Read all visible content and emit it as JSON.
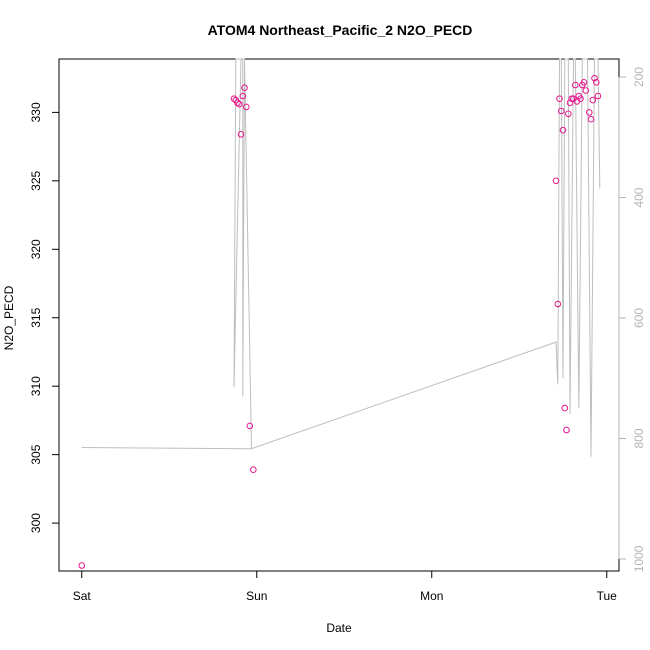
{
  "chart_data": {
    "type": "scatter",
    "title": "ATOM4 Northeast_Pacific_2 N2O_PECD",
    "xlabel": "Date",
    "ylabel": "N2O_PECD",
    "x_ticks": [
      {
        "label": "Sat",
        "value": 0
      },
      {
        "label": "Sun",
        "value": 1
      },
      {
        "label": "Mon",
        "value": 2
      },
      {
        "label": "Tue",
        "value": 3
      }
    ],
    "xlim": [
      -0.13,
      3.07
    ],
    "ylim": [
      296.5,
      333.9
    ],
    "y_ticks": [
      300,
      305,
      310,
      315,
      320,
      325,
      330
    ],
    "y2_ticks": [
      200,
      400,
      600,
      800,
      1000
    ],
    "y2lim": [
      1020,
      170
    ],
    "grid": false,
    "legend": "none",
    "colors": {
      "points": "#e8188c",
      "line": "#bebebe"
    },
    "points": [
      {
        "x": 0.0,
        "y": 296.9
      },
      {
        "x": 0.87,
        "y": 331.0
      },
      {
        "x": 0.88,
        "y": 330.9
      },
      {
        "x": 0.89,
        "y": 330.7
      },
      {
        "x": 0.9,
        "y": 330.6
      },
      {
        "x": 0.91,
        "y": 328.4
      },
      {
        "x": 0.92,
        "y": 331.2
      },
      {
        "x": 0.93,
        "y": 331.8
      },
      {
        "x": 0.94,
        "y": 330.4
      },
      {
        "x": 0.96,
        "y": 307.1
      },
      {
        "x": 0.98,
        "y": 303.9
      },
      {
        "x": 2.71,
        "y": 325.0
      },
      {
        "x": 2.72,
        "y": 316.0
      },
      {
        "x": 2.73,
        "y": 331.0
      },
      {
        "x": 2.74,
        "y": 330.1
      },
      {
        "x": 2.75,
        "y": 328.7
      },
      {
        "x": 2.76,
        "y": 308.4
      },
      {
        "x": 2.77,
        "y": 306.8
      },
      {
        "x": 2.78,
        "y": 329.9
      },
      {
        "x": 2.79,
        "y": 330.7
      },
      {
        "x": 2.8,
        "y": 331.0
      },
      {
        "x": 2.81,
        "y": 331.0
      },
      {
        "x": 2.82,
        "y": 332.0
      },
      {
        "x": 2.83,
        "y": 330.8
      },
      {
        "x": 2.84,
        "y": 331.2
      },
      {
        "x": 2.85,
        "y": 331.0
      },
      {
        "x": 2.86,
        "y": 332.0
      },
      {
        "x": 2.87,
        "y": 332.2
      },
      {
        "x": 2.88,
        "y": 331.6
      },
      {
        "x": 2.9,
        "y": 330.0
      },
      {
        "x": 2.91,
        "y": 329.5
      },
      {
        "x": 2.92,
        "y": 330.9
      },
      {
        "x": 2.93,
        "y": 332.5
      },
      {
        "x": 2.94,
        "y": 332.2
      },
      {
        "x": 2.95,
        "y": 331.2
      }
    ],
    "line": [
      {
        "x": 0.0,
        "y2": 815
      },
      {
        "x": 0.97,
        "y2": 817
      },
      {
        "x": 0.93,
        "y2": 160
      },
      {
        "x": 0.91,
        "y2": 160
      },
      {
        "x": 0.87,
        "y2": 715
      },
      {
        "x": 0.88,
        "y2": 160
      },
      {
        "x": 0.89,
        "y2": 160
      },
      {
        "x": 0.9,
        "y2": 160
      },
      {
        "x": 0.92,
        "y2": 160
      },
      {
        "x": 0.92,
        "y2": 730
      },
      {
        "x": 0.93,
        "y2": 160
      },
      {
        "x": 0.97,
        "y2": 817
      },
      {
        "x": 2.71,
        "y2": 640
      },
      {
        "x": 2.72,
        "y2": 710
      },
      {
        "x": 2.73,
        "y2": 160
      },
      {
        "x": 2.74,
        "y2": 160
      },
      {
        "x": 2.75,
        "y2": 700
      },
      {
        "x": 2.76,
        "y2": 160
      },
      {
        "x": 2.78,
        "y2": 160
      },
      {
        "x": 2.79,
        "y2": 760
      },
      {
        "x": 2.81,
        "y2": 160
      },
      {
        "x": 2.82,
        "y2": 160
      },
      {
        "x": 2.84,
        "y2": 750
      },
      {
        "x": 2.86,
        "y2": 160
      },
      {
        "x": 2.87,
        "y2": 160
      },
      {
        "x": 2.89,
        "y2": 160
      },
      {
        "x": 2.91,
        "y2": 830
      },
      {
        "x": 2.93,
        "y2": 160
      },
      {
        "x": 2.95,
        "y2": 160
      },
      {
        "x": 2.96,
        "y2": 385
      }
    ]
  }
}
